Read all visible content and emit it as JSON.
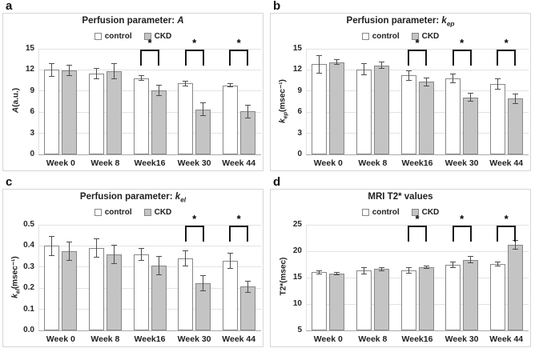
{
  "figure_name": "CKD vs control renal MRI perfusion figure",
  "colors": {
    "control_fill": "#ffffff",
    "ckd_fill": "#c4c4c4",
    "bar_border": "#878787",
    "gridline": "#e2e2e2",
    "axis": "#ababab",
    "error_bar": "#4d4d4d",
    "bracket": "#161616",
    "text": "#1f1f1f",
    "panel_border": "#d6d6d6"
  },
  "chart_data": [
    {
      "type": "bar",
      "letter": "a",
      "title": "Perfusion parameter: A",
      "title_prefix": "Perfusion parameter: ",
      "title_param": "A",
      "title_param_sub": "",
      "legend": [
        "control",
        "CKD"
      ],
      "legend_position": "top",
      "xlabel": "",
      "ylabel": "A(a.u.)",
      "ylabel_main": "A",
      "ylabel_sub": "",
      "ylabel_rest": "(a.u.)",
      "ylabel_italic": true,
      "ymin": 0,
      "ymax": 15,
      "yticks": [
        0,
        3,
        6,
        9,
        12,
        15
      ],
      "ytick_labels": [
        "0",
        "3",
        "6",
        "9",
        "12",
        "15"
      ],
      "grid": true,
      "categories": [
        "Week 0",
        "Week 8",
        "Week16",
        "Week 30",
        "Week 44"
      ],
      "series": [
        {
          "name": "control",
          "fill": "#ffffff",
          "values": [
            12.0,
            11.5,
            10.8,
            10.1,
            9.8
          ],
          "err": [
            1.0,
            0.8,
            0.4,
            0.4,
            0.3
          ]
        },
        {
          "name": "CKD",
          "fill": "#c4c4c4",
          "values": [
            11.9,
            11.8,
            9.1,
            6.4,
            6.1
          ],
          "err": [
            0.8,
            1.1,
            0.8,
            1.0,
            1.0
          ]
        }
      ],
      "sig_categories": [
        2,
        3,
        4
      ],
      "sig_symbol": "*"
    },
    {
      "type": "bar",
      "letter": "b",
      "title": "Perfusion parameter: kep",
      "title_prefix": "Perfusion parameter: ",
      "title_param": "k",
      "title_param_sub": "ep",
      "legend": [
        "control",
        "CKD"
      ],
      "legend_position": "top",
      "xlabel": "",
      "ylabel": "kep(msec⁻¹)",
      "ylabel_main": "k",
      "ylabel_sub": "ep",
      "ylabel_rest": "(msec⁻¹)",
      "ylabel_italic": true,
      "ymin": 0,
      "ymax": 15,
      "yticks": [
        0,
        3,
        6,
        9,
        12,
        15
      ],
      "ytick_labels": [
        "0",
        "3",
        "6",
        "9",
        "12",
        "15"
      ],
      "grid": true,
      "categories": [
        "Week 0",
        "Week 8",
        "Week16",
        "Week 30",
        "Week 44"
      ],
      "series": [
        {
          "name": "control",
          "fill": "#ffffff",
          "values": [
            12.8,
            12.1,
            11.2,
            10.8,
            10.0
          ],
          "err": [
            1.3,
            0.9,
            0.7,
            0.7,
            0.8
          ]
        },
        {
          "name": "CKD",
          "fill": "#c4c4c4",
          "values": [
            13.1,
            12.65,
            10.3,
            8.1,
            7.9
          ],
          "err": [
            0.4,
            0.5,
            0.6,
            0.6,
            0.7
          ]
        }
      ],
      "sig_categories": [
        2,
        3,
        4
      ],
      "sig_symbol": "*"
    },
    {
      "type": "bar",
      "letter": "c",
      "title": "Perfusion parameter: kel",
      "title_prefix": "Perfusion parameter: ",
      "title_param": "k",
      "title_param_sub": "el",
      "legend": [
        "control",
        "CKD"
      ],
      "legend_position": "top",
      "xlabel": "",
      "ylabel": "kel(msec⁻¹)",
      "ylabel_main": "k",
      "ylabel_sub": "el",
      "ylabel_rest": "(msec⁻¹)",
      "ylabel_italic": true,
      "ymin": 0,
      "ymax": 0.5,
      "yticks": [
        0,
        0.1,
        0.2,
        0.3,
        0.4,
        0.5
      ],
      "ytick_labels": [
        "0.0",
        "0.1",
        "0.2",
        "0.3",
        "0.4",
        "0.5"
      ],
      "grid": true,
      "categories": [
        "Week 0",
        "Week 8",
        "Week16",
        "Week 30",
        "Week 44"
      ],
      "series": [
        {
          "name": "control",
          "fill": "#ffffff",
          "values": [
            0.4,
            0.39,
            0.36,
            0.34,
            0.33
          ],
          "err": [
            0.048,
            0.046,
            0.032,
            0.038,
            0.037
          ]
        },
        {
          "name": "CKD",
          "fill": "#c4c4c4",
          "values": [
            0.375,
            0.36,
            0.308,
            0.222,
            0.207
          ],
          "err": [
            0.045,
            0.044,
            0.046,
            0.038,
            0.028
          ]
        }
      ],
      "sig_categories": [
        3,
        4
      ],
      "sig_symbol": "*"
    },
    {
      "type": "bar",
      "letter": "d",
      "title": "MRI T2* values",
      "title_prefix": "MRI T2* values",
      "title_param": "",
      "title_param_sub": "",
      "legend": [
        "control",
        "CKD"
      ],
      "legend_position": "top",
      "xlabel": "",
      "ylabel": "T2*(msec)",
      "ylabel_main": "T2*",
      "ylabel_sub": "",
      "ylabel_rest": "(msec)",
      "ylabel_italic": false,
      "ymin": 5,
      "ymax": 25,
      "yticks": [
        5,
        10,
        15,
        20,
        25
      ],
      "ytick_labels": [
        "5",
        "10",
        "15",
        "20",
        "25"
      ],
      "grid": true,
      "categories": [
        "Week 0",
        "Week 8",
        "Week16",
        "Week 30",
        "Week 44"
      ],
      "series": [
        {
          "name": "control",
          "fill": "#ffffff",
          "values": [
            16.0,
            16.3,
            16.4,
            17.4,
            17.6
          ],
          "err": [
            0.4,
            0.7,
            0.6,
            0.6,
            0.5
          ]
        },
        {
          "name": "CKD",
          "fill": "#c4c4c4",
          "values": [
            15.8,
            16.6,
            16.9,
            18.4,
            21.2
          ],
          "err": [
            0.3,
            0.4,
            0.3,
            0.7,
            0.9
          ]
        }
      ],
      "sig_categories": [
        2,
        3,
        4
      ],
      "sig_symbol": "*"
    }
  ]
}
